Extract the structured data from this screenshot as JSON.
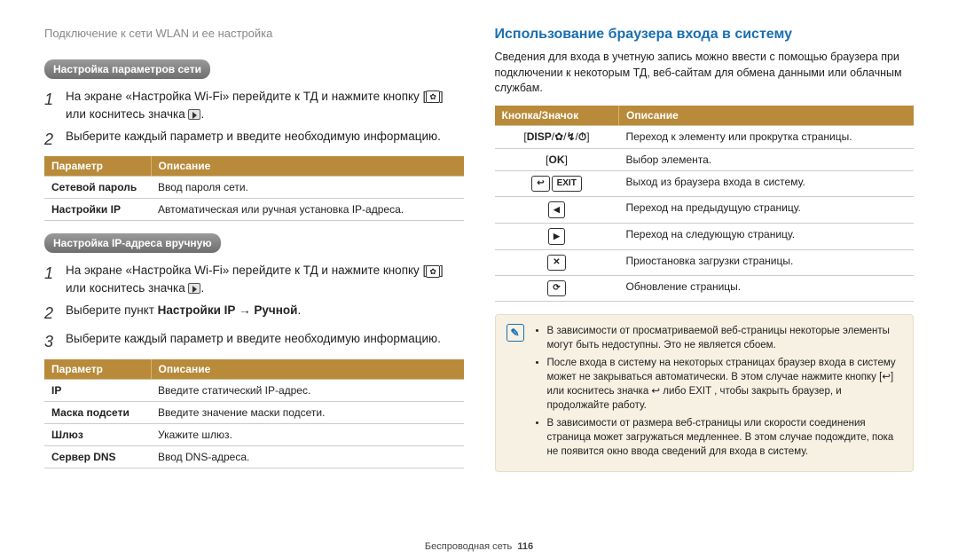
{
  "breadcrumb": "Подключение к сети WLAN и ее настройка",
  "left": {
    "section1": {
      "label": "Настройка параметров сети",
      "step1": "На экране «Настройка Wi-Fi» перейдите к ТД и нажмите кнопку",
      "step1b": "или коснитесь значка",
      "step2": "Выберите каждый параметр и введите необходимую информацию.",
      "table": {
        "h1": "Параметр",
        "h2": "Описание",
        "rows": [
          {
            "p": "Сетевой пароль",
            "d": "Ввод пароля сети."
          },
          {
            "p": "Настройки IP",
            "d": "Автоматическая или ручная установка IP-адреса."
          }
        ]
      }
    },
    "section2": {
      "label": "Настройка IP-адреса вручную",
      "step1": "На экране «Настройка Wi-Fi» перейдите к ТД и нажмите кнопку",
      "step1b": "или коснитесь значка",
      "step2a": "Выберите пункт ",
      "step2b": "Настройки IP",
      "step2c": " → ",
      "step2d": "Ручной",
      "step3": "Выберите каждый параметр и введите необходимую информацию.",
      "table": {
        "h1": "Параметр",
        "h2": "Описание",
        "rows": [
          {
            "p": "IP",
            "d": "Введите статический IP-адрес."
          },
          {
            "p": "Маска подсети",
            "d": "Введите значение маски подсети."
          },
          {
            "p": "Шлюз",
            "d": "Укажите шлюз."
          },
          {
            "p": "Сервер DNS",
            "d": "Ввод DNS-адреса."
          }
        ]
      }
    }
  },
  "right": {
    "heading": "Использование браузера входа в систему",
    "intro": "Сведения для входа в учетную запись можно ввести с помощью браузера при подключении к некоторым ТД, веб-сайтам для обмена данными или облачным службам.",
    "table": {
      "h1": "Кнопка/Значок",
      "h2": "Описание",
      "rows": [
        {
          "d": "Переход к элементу или прокрутка страницы."
        },
        {
          "d": "Выбор элемента."
        },
        {
          "d": "Выход из браузера входа в систему."
        },
        {
          "d": "Переход на предыдущую страницу."
        },
        {
          "d": "Переход на следующую страницу."
        },
        {
          "d": "Приостановка загрузки страницы."
        },
        {
          "d": "Обновление страницы."
        }
      ]
    },
    "key_labels": {
      "disp": "DISP",
      "ok": "OK",
      "exit": "EXIT"
    },
    "note": [
      "В зависимости от просматриваемой веб-страницы некоторые элементы могут быть недоступны. Это не является сбоем.",
      "После входа в систему на некоторых страницах браузер входа в систему может не закрываться автоматически. В этом случае нажмите кнопку [↩] или коснитесь значка ↩ либо EXIT , чтобы закрыть браузер, и продолжайте работу.",
      "В зависимости от размера веб-страницы или скорости соединения страница может загружаться медленнее. В этом случае подождите, пока не появится окно ввода сведений для входа в систему."
    ]
  },
  "footer": {
    "section": "Беспроводная сеть",
    "page": "116"
  },
  "colors": {
    "accent": "#1a6fb0",
    "table_header": "#b88a3a",
    "label_bg": "#7a7a7a",
    "note_bg": "#f6f1e3"
  }
}
